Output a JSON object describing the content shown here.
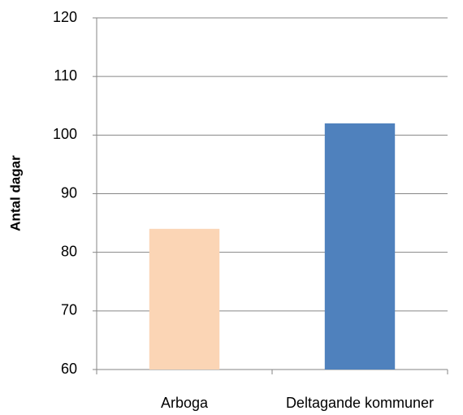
{
  "chart_data": {
    "type": "bar",
    "y_label": "Antal dagar",
    "categories": [
      "Arboga",
      "Deltagande kommuner"
    ],
    "values": [
      84,
      102
    ],
    "colors": [
      "#fbd5b5",
      "#4f81bd"
    ],
    "ylim": [
      60,
      120
    ],
    "yticks": [
      60,
      70,
      80,
      90,
      100,
      110,
      120
    ],
    "grid": true
  }
}
